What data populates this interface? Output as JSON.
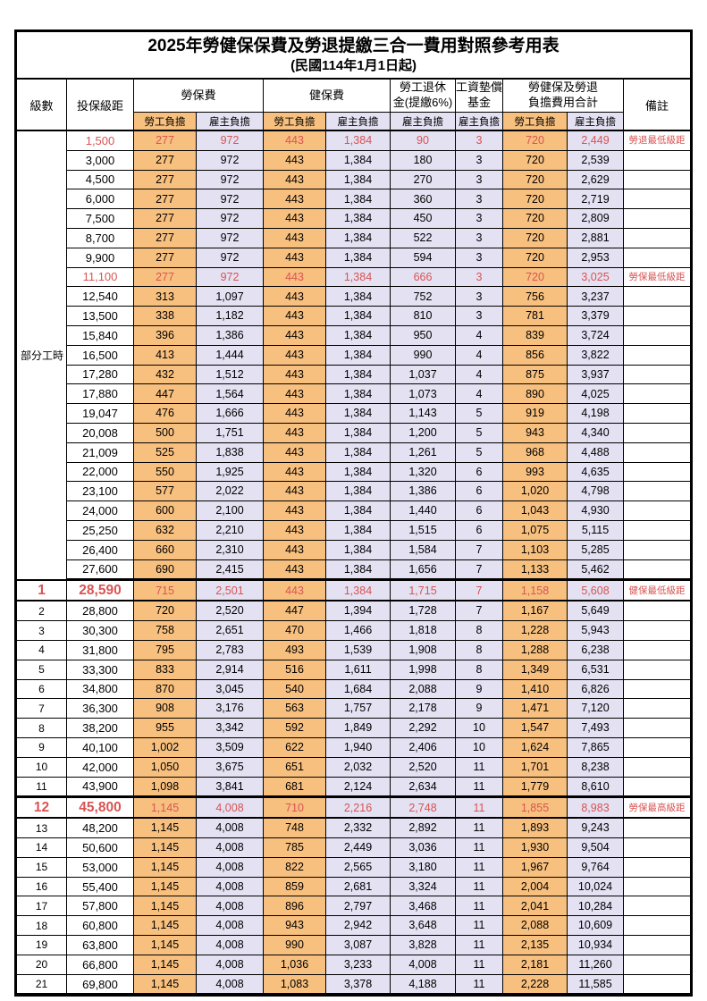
{
  "title": "2025年勞健保保費及勞退提繳三合一費用對照參考用表",
  "subtitle": "(民國114年1月1日起)",
  "colors": {
    "worker_bg": "#F8C07E",
    "employer_bg": "#E3E1F2",
    "highlight_text": "#D95454",
    "border": "#000000"
  },
  "header": {
    "level": "級數",
    "salary": "投保級距",
    "labor": "勞保費",
    "health": "健保費",
    "pension_line1": "勞工退休",
    "pension_line2": "金(提繳6%)",
    "fund_line1": "工資墊償",
    "fund_line2": "基金",
    "total_line1": "勞健保及勞退",
    "total_line2": "負擔費用合計",
    "note": "備註",
    "worker": "勞工負擔",
    "employer": "雇主負擔"
  },
  "table": {
    "part_time_label": "部分工時",
    "merge_rows": 23,
    "rows": [
      {
        "lv": "",
        "sal": "1,500",
        "lw": "277",
        "le": "972",
        "hw": "443",
        "he": "1,384",
        "pe": "90",
        "wf": "3",
        "tw": "720",
        "te": "2,449",
        "note": "勞退最低級距",
        "hl": true
      },
      {
        "lv": "",
        "sal": "3,000",
        "lw": "277",
        "le": "972",
        "hw": "443",
        "he": "1,384",
        "pe": "180",
        "wf": "3",
        "tw": "720",
        "te": "2,539",
        "note": ""
      },
      {
        "lv": "",
        "sal": "4,500",
        "lw": "277",
        "le": "972",
        "hw": "443",
        "he": "1,384",
        "pe": "270",
        "wf": "3",
        "tw": "720",
        "te": "2,629",
        "note": ""
      },
      {
        "lv": "",
        "sal": "6,000",
        "lw": "277",
        "le": "972",
        "hw": "443",
        "he": "1,384",
        "pe": "360",
        "wf": "3",
        "tw": "720",
        "te": "2,719",
        "note": ""
      },
      {
        "lv": "",
        "sal": "7,500",
        "lw": "277",
        "le": "972",
        "hw": "443",
        "he": "1,384",
        "pe": "450",
        "wf": "3",
        "tw": "720",
        "te": "2,809",
        "note": ""
      },
      {
        "lv": "",
        "sal": "8,700",
        "lw": "277",
        "le": "972",
        "hw": "443",
        "he": "1,384",
        "pe": "522",
        "wf": "3",
        "tw": "720",
        "te": "2,881",
        "note": ""
      },
      {
        "lv": "",
        "sal": "9,900",
        "lw": "277",
        "le": "972",
        "hw": "443",
        "he": "1,384",
        "pe": "594",
        "wf": "3",
        "tw": "720",
        "te": "2,953",
        "note": ""
      },
      {
        "lv": "",
        "sal": "11,100",
        "lw": "277",
        "le": "972",
        "hw": "443",
        "he": "1,384",
        "pe": "666",
        "wf": "3",
        "tw": "720",
        "te": "3,025",
        "note": "勞保最低級距",
        "hl": true
      },
      {
        "lv": "",
        "sal": "12,540",
        "lw": "313",
        "le": "1,097",
        "hw": "443",
        "he": "1,384",
        "pe": "752",
        "wf": "3",
        "tw": "756",
        "te": "3,237",
        "note": ""
      },
      {
        "lv": "",
        "sal": "13,500",
        "lw": "338",
        "le": "1,182",
        "hw": "443",
        "he": "1,384",
        "pe": "810",
        "wf": "3",
        "tw": "781",
        "te": "3,379",
        "note": ""
      },
      {
        "lv": "",
        "sal": "15,840",
        "lw": "396",
        "le": "1,386",
        "hw": "443",
        "he": "1,384",
        "pe": "950",
        "wf": "4",
        "tw": "839",
        "te": "3,724",
        "note": ""
      },
      {
        "lv": "",
        "sal": "16,500",
        "lw": "413",
        "le": "1,444",
        "hw": "443",
        "he": "1,384",
        "pe": "990",
        "wf": "4",
        "tw": "856",
        "te": "3,822",
        "note": ""
      },
      {
        "lv": "",
        "sal": "17,280",
        "lw": "432",
        "le": "1,512",
        "hw": "443",
        "he": "1,384",
        "pe": "1,037",
        "wf": "4",
        "tw": "875",
        "te": "3,937",
        "note": ""
      },
      {
        "lv": "",
        "sal": "17,880",
        "lw": "447",
        "le": "1,564",
        "hw": "443",
        "he": "1,384",
        "pe": "1,073",
        "wf": "4",
        "tw": "890",
        "te": "4,025",
        "note": ""
      },
      {
        "lv": "",
        "sal": "19,047",
        "lw": "476",
        "le": "1,666",
        "hw": "443",
        "he": "1,384",
        "pe": "1,143",
        "wf": "5",
        "tw": "919",
        "te": "4,198",
        "note": ""
      },
      {
        "lv": "",
        "sal": "20,008",
        "lw": "500",
        "le": "1,751",
        "hw": "443",
        "he": "1,384",
        "pe": "1,200",
        "wf": "5",
        "tw": "943",
        "te": "4,340",
        "note": ""
      },
      {
        "lv": "",
        "sal": "21,009",
        "lw": "525",
        "le": "1,838",
        "hw": "443",
        "he": "1,384",
        "pe": "1,261",
        "wf": "5",
        "tw": "968",
        "te": "4,488",
        "note": ""
      },
      {
        "lv": "",
        "sal": "22,000",
        "lw": "550",
        "le": "1,925",
        "hw": "443",
        "he": "1,384",
        "pe": "1,320",
        "wf": "6",
        "tw": "993",
        "te": "4,635",
        "note": ""
      },
      {
        "lv": "",
        "sal": "23,100",
        "lw": "577",
        "le": "2,022",
        "hw": "443",
        "he": "1,384",
        "pe": "1,386",
        "wf": "6",
        "tw": "1,020",
        "te": "4,798",
        "note": ""
      },
      {
        "lv": "",
        "sal": "24,000",
        "lw": "600",
        "le": "2,100",
        "hw": "443",
        "he": "1,384",
        "pe": "1,440",
        "wf": "6",
        "tw": "1,043",
        "te": "4,930",
        "note": ""
      },
      {
        "lv": "",
        "sal": "25,250",
        "lw": "632",
        "le": "2,210",
        "hw": "443",
        "he": "1,384",
        "pe": "1,515",
        "wf": "6",
        "tw": "1,075",
        "te": "5,115",
        "note": ""
      },
      {
        "lv": "",
        "sal": "26,400",
        "lw": "660",
        "le": "2,310",
        "hw": "443",
        "he": "1,384",
        "pe": "1,584",
        "wf": "7",
        "tw": "1,103",
        "te": "5,285",
        "note": ""
      },
      {
        "lv": "",
        "sal": "27,600",
        "lw": "690",
        "le": "2,415",
        "hw": "443",
        "he": "1,384",
        "pe": "1,656",
        "wf": "7",
        "tw": "1,133",
        "te": "5,462",
        "note": ""
      },
      {
        "lv": "1",
        "sal": "28,590",
        "lw": "715",
        "le": "2,501",
        "hw": "443",
        "he": "1,384",
        "pe": "1,715",
        "wf": "7",
        "tw": "1,158",
        "te": "5,608",
        "note": "健保最低級距",
        "hl": true,
        "emph": true
      },
      {
        "lv": "2",
        "sal": "28,800",
        "lw": "720",
        "le": "2,520",
        "hw": "447",
        "he": "1,394",
        "pe": "1,728",
        "wf": "7",
        "tw": "1,167",
        "te": "5,649",
        "note": ""
      },
      {
        "lv": "3",
        "sal": "30,300",
        "lw": "758",
        "le": "2,651",
        "hw": "470",
        "he": "1,466",
        "pe": "1,818",
        "wf": "8",
        "tw": "1,228",
        "te": "5,943",
        "note": ""
      },
      {
        "lv": "4",
        "sal": "31,800",
        "lw": "795",
        "le": "2,783",
        "hw": "493",
        "he": "1,539",
        "pe": "1,908",
        "wf": "8",
        "tw": "1,288",
        "te": "6,238",
        "note": ""
      },
      {
        "lv": "5",
        "sal": "33,300",
        "lw": "833",
        "le": "2,914",
        "hw": "516",
        "he": "1,611",
        "pe": "1,998",
        "wf": "8",
        "tw": "1,349",
        "te": "6,531",
        "note": ""
      },
      {
        "lv": "6",
        "sal": "34,800",
        "lw": "870",
        "le": "3,045",
        "hw": "540",
        "he": "1,684",
        "pe": "2,088",
        "wf": "9",
        "tw": "1,410",
        "te": "6,826",
        "note": ""
      },
      {
        "lv": "7",
        "sal": "36,300",
        "lw": "908",
        "le": "3,176",
        "hw": "563",
        "he": "1,757",
        "pe": "2,178",
        "wf": "9",
        "tw": "1,471",
        "te": "7,120",
        "note": ""
      },
      {
        "lv": "8",
        "sal": "38,200",
        "lw": "955",
        "le": "3,342",
        "hw": "592",
        "he": "1,849",
        "pe": "2,292",
        "wf": "10",
        "tw": "1,547",
        "te": "7,493",
        "note": ""
      },
      {
        "lv": "9",
        "sal": "40,100",
        "lw": "1,002",
        "le": "3,509",
        "hw": "622",
        "he": "1,940",
        "pe": "2,406",
        "wf": "10",
        "tw": "1,624",
        "te": "7,865",
        "note": ""
      },
      {
        "lv": "10",
        "sal": "42,000",
        "lw": "1,050",
        "le": "3,675",
        "hw": "651",
        "he": "2,032",
        "pe": "2,520",
        "wf": "11",
        "tw": "1,701",
        "te": "8,238",
        "note": ""
      },
      {
        "lv": "11",
        "sal": "43,900",
        "lw": "1,098",
        "le": "3,841",
        "hw": "681",
        "he": "2,124",
        "pe": "2,634",
        "wf": "11",
        "tw": "1,779",
        "te": "8,610",
        "note": ""
      },
      {
        "lv": "12",
        "sal": "45,800",
        "lw": "1,145",
        "le": "4,008",
        "hw": "710",
        "he": "2,216",
        "pe": "2,748",
        "wf": "11",
        "tw": "1,855",
        "te": "8,983",
        "note": "勞保最高級距",
        "hl": true,
        "emph": true
      },
      {
        "lv": "13",
        "sal": "48,200",
        "lw": "1,145",
        "le": "4,008",
        "hw": "748",
        "he": "2,332",
        "pe": "2,892",
        "wf": "11",
        "tw": "1,893",
        "te": "9,243",
        "note": ""
      },
      {
        "lv": "14",
        "sal": "50,600",
        "lw": "1,145",
        "le": "4,008",
        "hw": "785",
        "he": "2,449",
        "pe": "3,036",
        "wf": "11",
        "tw": "1,930",
        "te": "9,504",
        "note": ""
      },
      {
        "lv": "15",
        "sal": "53,000",
        "lw": "1,145",
        "le": "4,008",
        "hw": "822",
        "he": "2,565",
        "pe": "3,180",
        "wf": "11",
        "tw": "1,967",
        "te": "9,764",
        "note": ""
      },
      {
        "lv": "16",
        "sal": "55,400",
        "lw": "1,145",
        "le": "4,008",
        "hw": "859",
        "he": "2,681",
        "pe": "3,324",
        "wf": "11",
        "tw": "2,004",
        "te": "10,024",
        "note": ""
      },
      {
        "lv": "17",
        "sal": "57,800",
        "lw": "1,145",
        "le": "4,008",
        "hw": "896",
        "he": "2,797",
        "pe": "3,468",
        "wf": "11",
        "tw": "2,041",
        "te": "10,284",
        "note": ""
      },
      {
        "lv": "18",
        "sal": "60,800",
        "lw": "1,145",
        "le": "4,008",
        "hw": "943",
        "he": "2,942",
        "pe": "3,648",
        "wf": "11",
        "tw": "2,088",
        "te": "10,609",
        "note": ""
      },
      {
        "lv": "19",
        "sal": "63,800",
        "lw": "1,145",
        "le": "4,008",
        "hw": "990",
        "he": "3,087",
        "pe": "3,828",
        "wf": "11",
        "tw": "2,135",
        "te": "10,934",
        "note": ""
      },
      {
        "lv": "20",
        "sal": "66,800",
        "lw": "1,145",
        "le": "4,008",
        "hw": "1,036",
        "he": "3,233",
        "pe": "4,008",
        "wf": "11",
        "tw": "2,181",
        "te": "11,260",
        "note": ""
      },
      {
        "lv": "21",
        "sal": "69,800",
        "lw": "1,145",
        "le": "4,008",
        "hw": "1,083",
        "he": "3,378",
        "pe": "4,188",
        "wf": "11",
        "tw": "2,228",
        "te": "11,585",
        "note": ""
      }
    ]
  }
}
